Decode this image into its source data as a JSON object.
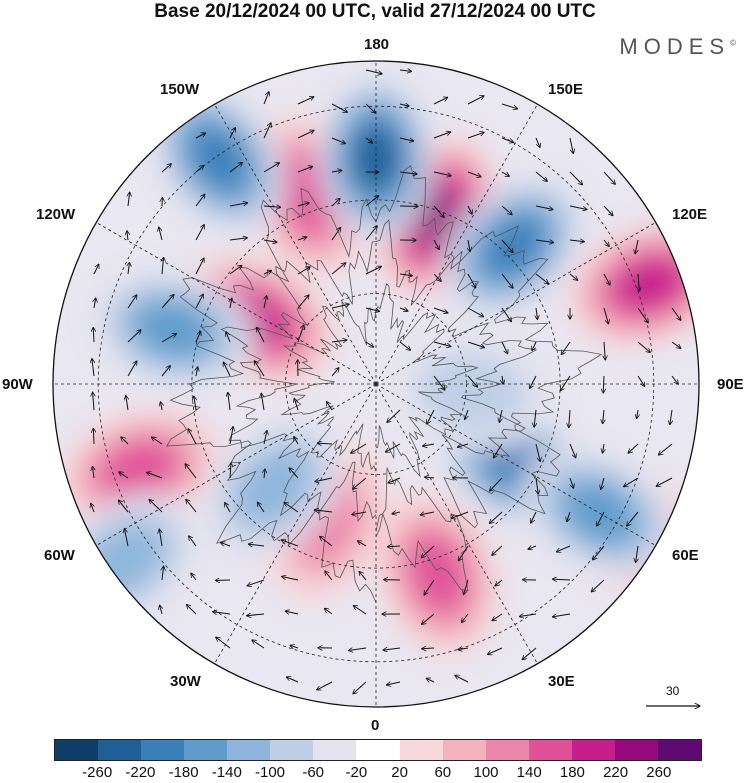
{
  "title": "Base 20/12/2024 00 UTC, valid 27/12/2024 00 UTC",
  "brand": "MODES",
  "brand_mark": "©",
  "longitude_labels": {
    "top": "180",
    "bottom": "0",
    "left": "90W",
    "right": "90E",
    "upper_left_1": "150W",
    "upper_left_2": "120W",
    "lower_left_1": "60W",
    "lower_left_2": "30W",
    "upper_right_1": "150E",
    "upper_right_2": "120E",
    "lower_right_1": "60E",
    "lower_right_2": "30E"
  },
  "vector_scale_label": "30",
  "colorbar": {
    "colors": [
      "#0d3f66",
      "#1f5f96",
      "#3a80bb",
      "#5f9ccc",
      "#8eb6dc",
      "#bfcfe6",
      "#e4e3ef",
      "#ffffff",
      "#f8d8da",
      "#f2b3bd",
      "#ec85aa",
      "#e0519a",
      "#c61f8c",
      "#98087d",
      "#5f0a72"
    ],
    "ticks": [
      "-260",
      "-220",
      "-180",
      "-140",
      "-100",
      "-60",
      "-20",
      "20",
      "60",
      "100",
      "140",
      "180",
      "220",
      "260"
    ]
  },
  "anomaly_centers": [
    {
      "angle": 200,
      "r": 0.55,
      "value": 230
    },
    {
      "angle": 160,
      "r": 0.62,
      "value": 140
    },
    {
      "angle": 118,
      "r": 0.42,
      "value": 200
    },
    {
      "angle": 70,
      "r": 0.78,
      "value": 170
    },
    {
      "angle": 250,
      "r": 0.9,
      "value": 200
    },
    {
      "angle": 300,
      "r": 0.92,
      "value": 190
    },
    {
      "angle": 342,
      "r": 0.62,
      "value": 140
    },
    {
      "angle": 20,
      "r": 0.45,
      "value": 110
    },
    {
      "angle": 225,
      "r": 0.6,
      "value": -200
    },
    {
      "angle": 180,
      "r": 0.7,
      "value": -220
    },
    {
      "angle": 145,
      "r": 0.85,
      "value": -180
    },
    {
      "angle": 105,
      "r": 0.65,
      "value": -140
    },
    {
      "angle": 45,
      "r": 0.45,
      "value": -120
    },
    {
      "angle": 300,
      "r": 0.5,
      "value": -200
    },
    {
      "angle": 300,
      "r": 0.8,
      "value": -160
    },
    {
      "angle": 55,
      "r": 0.95,
      "value": -120
    },
    {
      "angle": 275,
      "r": 0.3,
      "value": -60
    }
  ]
}
